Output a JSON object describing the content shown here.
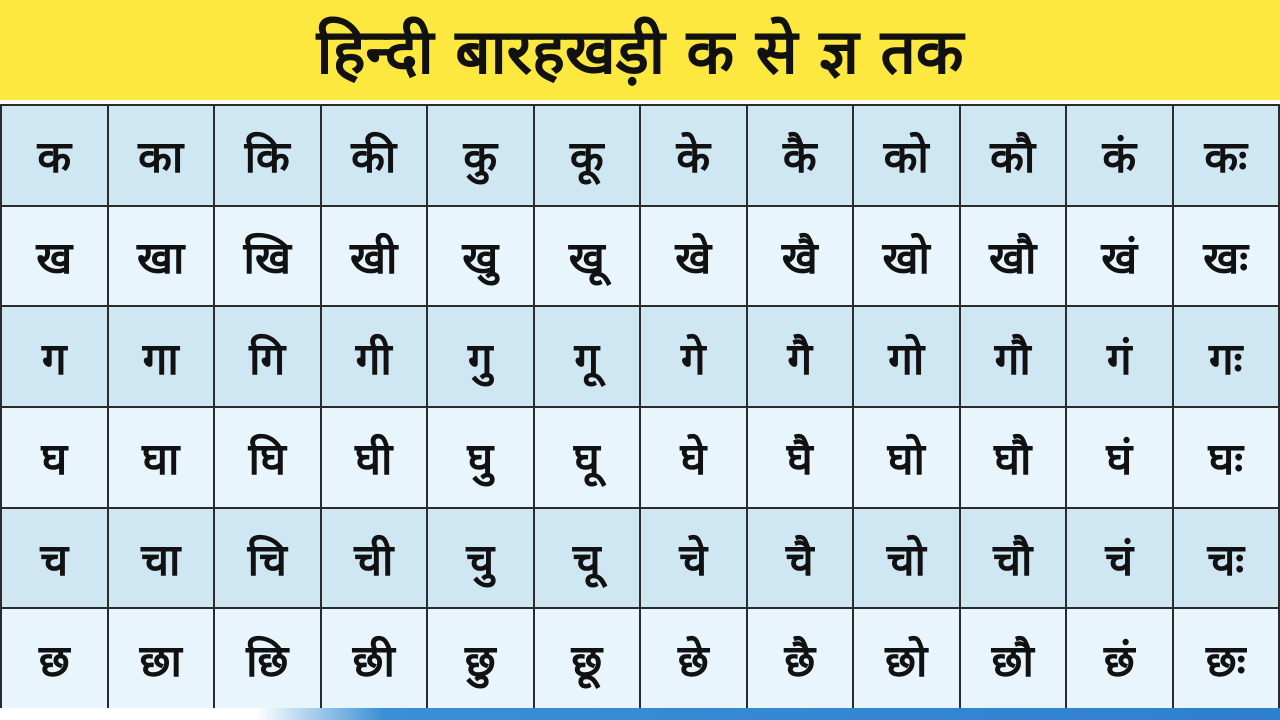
{
  "title": "हिन्दी बारहखड़ी क से ज्ञ तक",
  "colors": {
    "title_background": "#fde83f",
    "row_dark": "#cfe6f3",
    "row_light": "#e9f5fc",
    "matra_accent": "#e8281e",
    "text": "#111111"
  },
  "table": {
    "rows": [
      [
        "क",
        "का",
        "कि",
        "की",
        "कु",
        "कू",
        "के",
        "कै",
        "को",
        "कौ",
        "कं",
        "कः"
      ],
      [
        "ख",
        "खा",
        "खि",
        "खी",
        "खु",
        "खू",
        "खे",
        "खै",
        "खो",
        "खौ",
        "खं",
        "खः"
      ],
      [
        "ग",
        "गा",
        "गि",
        "गी",
        "गु",
        "गू",
        "गे",
        "गै",
        "गो",
        "गौ",
        "गं",
        "गः"
      ],
      [
        "घ",
        "घा",
        "घि",
        "घी",
        "घु",
        "घू",
        "घे",
        "घै",
        "घो",
        "घौ",
        "घं",
        "घः"
      ],
      [
        "च",
        "चा",
        "चि",
        "ची",
        "चु",
        "चू",
        "चे",
        "चै",
        "चो",
        "चौ",
        "चं",
        "चः"
      ],
      [
        "छ",
        "छा",
        "छि",
        "छी",
        "छु",
        "छू",
        "छे",
        "छै",
        "छो",
        "छौ",
        "छं",
        "छः"
      ]
    ]
  }
}
